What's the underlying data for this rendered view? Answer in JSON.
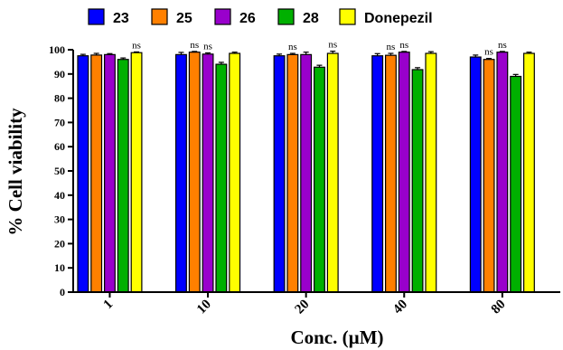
{
  "chart_data": {
    "type": "bar",
    "title": "",
    "xlabel": "Conc. (µM)",
    "ylabel": "% Cell viability",
    "ylim": [
      0,
      100
    ],
    "yticks": [
      0,
      10,
      20,
      30,
      40,
      50,
      60,
      70,
      80,
      90,
      100
    ],
    "categories": [
      "1",
      "10",
      "20",
      "40",
      "80"
    ],
    "legend_position": "top",
    "grid": false,
    "significance_label": "ns",
    "series": [
      {
        "name": "23",
        "color": "#0000ff",
        "values": [
          97.5,
          98.0,
          97.5,
          97.5,
          97.0
        ],
        "errors": [
          0.6,
          0.9,
          0.7,
          0.9,
          0.8
        ],
        "ns": [
          false,
          false,
          false,
          false,
          false
        ]
      },
      {
        "name": "25",
        "color": "#ff8000",
        "values": [
          97.8,
          99.0,
          98.0,
          97.7,
          96.0
        ],
        "errors": [
          0.7,
          0.3,
          0.5,
          0.8,
          0.4
        ],
        "ns": [
          false,
          true,
          true,
          true,
          true
        ]
      },
      {
        "name": "26",
        "color": "#9900cc",
        "values": [
          98.0,
          98.2,
          98.0,
          99.0,
          99.0
        ],
        "errors": [
          0.4,
          0.5,
          1.0,
          0.3,
          0.3
        ],
        "ns": [
          false,
          true,
          false,
          true,
          true
        ]
      },
      {
        "name": "28",
        "color": "#00b000",
        "values": [
          96.0,
          94.0,
          92.8,
          91.8,
          89.0
        ],
        "errors": [
          0.6,
          0.8,
          0.8,
          0.8,
          0.8
        ],
        "ns": [
          false,
          false,
          false,
          false,
          false
        ]
      },
      {
        "name": "Donepezil",
        "color": "#ffff00",
        "values": [
          98.8,
          98.5,
          98.5,
          98.5,
          98.5
        ],
        "errors": [
          0.3,
          0.5,
          0.9,
          0.7,
          0.5
        ],
        "ns": [
          true,
          false,
          true,
          false,
          false
        ]
      }
    ]
  }
}
